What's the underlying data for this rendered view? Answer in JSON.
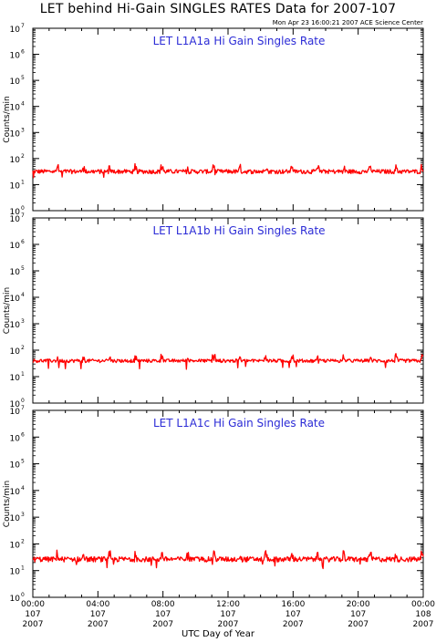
{
  "title": "LET behind Hi-Gain SINGLES RATES Data for 2007-107",
  "timestamp": "Mon Apr 23 16:00:21 2007 ACE Science Center",
  "x_axis_title": "UTC Day of Year",
  "colors": {
    "trace": "#ff0000",
    "panel_title": "#2b2bd6",
    "axes": "#000000"
  },
  "chart_data": [
    {
      "type": "line",
      "title": "LET L1A1a Hi Gain Singles Rate",
      "ylabel": "Counts/min",
      "yscale": "log",
      "ylim": [
        1,
        10000000
      ],
      "yticks": [
        {
          "base": "10",
          "exp": "0"
        },
        {
          "base": "10",
          "exp": "1"
        },
        {
          "base": "10",
          "exp": "2"
        },
        {
          "base": "10",
          "exp": "3"
        },
        {
          "base": "10",
          "exp": "4"
        },
        {
          "base": "10",
          "exp": "5"
        },
        {
          "base": "10",
          "exp": "6"
        },
        {
          "base": "10",
          "exp": "7"
        }
      ],
      "xlim_hours": [
        0,
        24
      ],
      "series": [
        {
          "baseline": 32,
          "scatter": 6,
          "spike_every_hours": 1.6,
          "spike_peak": 60
        }
      ]
    },
    {
      "type": "line",
      "title": "LET L1A1b Hi Gain Singles Rate",
      "ylabel": "Counts/min",
      "yscale": "log",
      "ylim": [
        1,
        10000000
      ],
      "yticks": [
        {
          "base": "10",
          "exp": "0"
        },
        {
          "base": "10",
          "exp": "1"
        },
        {
          "base": "10",
          "exp": "2"
        },
        {
          "base": "10",
          "exp": "3"
        },
        {
          "base": "10",
          "exp": "4"
        },
        {
          "base": "10",
          "exp": "5"
        },
        {
          "base": "10",
          "exp": "6"
        },
        {
          "base": "10",
          "exp": "7"
        }
      ],
      "xlim_hours": [
        0,
        24
      ],
      "series": [
        {
          "baseline": 40,
          "scatter": 6,
          "spike_every_hours": 1.6,
          "spike_peak": 70
        }
      ]
    },
    {
      "type": "line",
      "title": "LET L1A1c Hi Gain Singles Rate",
      "ylabel": "Counts/min",
      "yscale": "log",
      "ylim": [
        1,
        10000000
      ],
      "yticks": [
        {
          "base": "10",
          "exp": "0"
        },
        {
          "base": "10",
          "exp": "1"
        },
        {
          "base": "10",
          "exp": "2"
        },
        {
          "base": "10",
          "exp": "3"
        },
        {
          "base": "10",
          "exp": "4"
        },
        {
          "base": "10",
          "exp": "5"
        },
        {
          "base": "10",
          "exp": "6"
        },
        {
          "base": "10",
          "exp": "7"
        }
      ],
      "xlim_hours": [
        0,
        24
      ],
      "series": [
        {
          "baseline": 27,
          "scatter": 6,
          "spike_every_hours": 1.6,
          "spike_peak": 55
        }
      ]
    }
  ],
  "x_ticks": [
    {
      "time": "00:00",
      "doy": "107",
      "year": "2007"
    },
    {
      "time": "04:00",
      "doy": "107",
      "year": "2007"
    },
    {
      "time": "08:00",
      "doy": "107",
      "year": "2007"
    },
    {
      "time": "12:00",
      "doy": "107",
      "year": "2007"
    },
    {
      "time": "16:00",
      "doy": "107",
      "year": "2007"
    },
    {
      "time": "20:00",
      "doy": "107",
      "year": "2007"
    },
    {
      "time": "00:00",
      "doy": "108",
      "year": "2007"
    }
  ]
}
